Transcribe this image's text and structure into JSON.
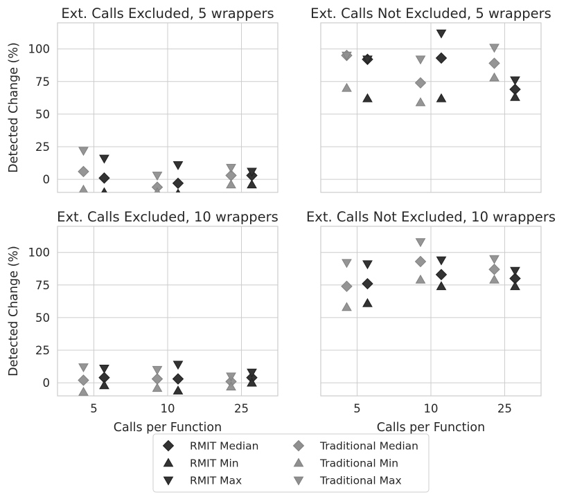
{
  "chart_data": {
    "type": "scatter",
    "shared_x_categories": [
      "5",
      "10",
      "25"
    ],
    "xlabel": "Calls per Function",
    "ylabel": "Detected Change (%)",
    "ylim": [
      -10,
      120
    ],
    "yticks": [
      0,
      25,
      50,
      75,
      100
    ],
    "grid": true,
    "legend": {
      "placement": "bottom-center",
      "columns": 2,
      "entries": [
        {
          "label": "RMIT Median",
          "marker": "diamond",
          "color": "#333333"
        },
        {
          "label": "RMIT Min",
          "marker": "triangle-up",
          "color": "#333333"
        },
        {
          "label": "RMIT Max",
          "marker": "triangle-down",
          "color": "#333333"
        },
        {
          "label": "Traditional Median",
          "marker": "diamond",
          "color": "#8f8f8f"
        },
        {
          "label": "Traditional Min",
          "marker": "triangle-up",
          "color": "#8f8f8f"
        },
        {
          "label": "Traditional Max",
          "marker": "triangle-down",
          "color": "#8f8f8f"
        }
      ]
    },
    "panels": [
      {
        "title": "Ext. Calls Excluded, 5 wrappers",
        "series": [
          {
            "name": "Traditional Median",
            "values": [
              6,
              -6,
              3
            ]
          },
          {
            "name": "Traditional Min",
            "values": [
              -8,
              -10,
              -4
            ]
          },
          {
            "name": "Traditional Max",
            "values": [
              22,
              3,
              9
            ]
          },
          {
            "name": "RMIT Median",
            "values": [
              1,
              -3,
              3
            ]
          },
          {
            "name": "RMIT Min",
            "values": [
              -10,
              -11,
              -4
            ]
          },
          {
            "name": "RMIT Max",
            "values": [
              16,
              11,
              6
            ]
          }
        ]
      },
      {
        "title": "Ext. Calls Not Excluded, 5 wrappers",
        "series": [
          {
            "name": "Traditional Median",
            "values": [
              95,
              74,
              89
            ]
          },
          {
            "name": "Traditional Min",
            "values": [
              70,
              59,
              78
            ]
          },
          {
            "name": "Traditional Max",
            "values": [
              95,
              92,
              101
            ]
          },
          {
            "name": "RMIT Median",
            "values": [
              92,
              93,
              69
            ]
          },
          {
            "name": "RMIT Min",
            "values": [
              62,
              62,
              63
            ]
          },
          {
            "name": "RMIT Max",
            "values": [
              92,
              112,
              76
            ]
          }
        ]
      },
      {
        "title": "Ext. Calls Excluded, 10 wrappers",
        "series": [
          {
            "name": "Traditional Median",
            "values": [
              2,
              3,
              1
            ]
          },
          {
            "name": "Traditional Min",
            "values": [
              -7,
              -4,
              -3
            ]
          },
          {
            "name": "Traditional Max",
            "values": [
              12,
              10,
              5
            ]
          },
          {
            "name": "RMIT Median",
            "values": [
              4,
              3,
              4
            ]
          },
          {
            "name": "RMIT Min",
            "values": [
              -2,
              -6,
              0
            ]
          },
          {
            "name": "RMIT Max",
            "values": [
              11,
              14,
              8
            ]
          }
        ]
      },
      {
        "title": "Ext. Calls Not Excluded, 10 wrappers",
        "series": [
          {
            "name": "Traditional Median",
            "values": [
              74,
              93,
              87
            ]
          },
          {
            "name": "Traditional Min",
            "values": [
              58,
              79,
              79
            ]
          },
          {
            "name": "Traditional Max",
            "values": [
              92,
              108,
              95
            ]
          },
          {
            "name": "RMIT Median",
            "values": [
              76,
              83,
              80
            ]
          },
          {
            "name": "RMIT Min",
            "values": [
              61,
              74,
              74
            ]
          },
          {
            "name": "RMIT Max",
            "values": [
              91,
              94,
              86
            ]
          }
        ]
      }
    ]
  }
}
